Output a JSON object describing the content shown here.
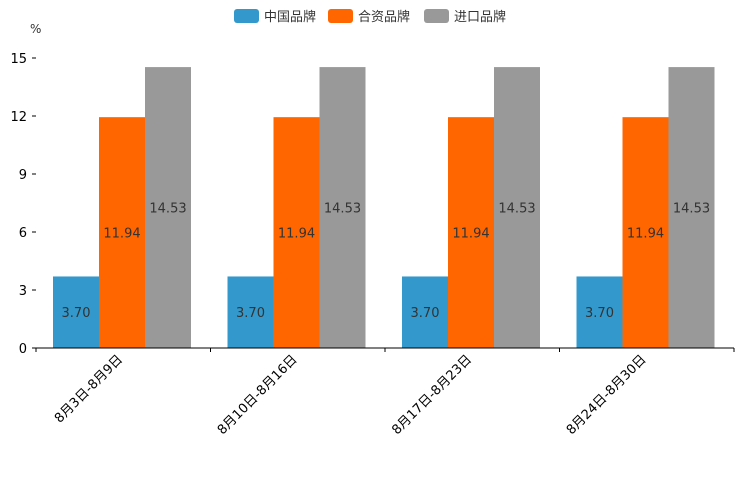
{
  "chart_data": {
    "type": "bar",
    "title": "",
    "xlabel": "",
    "ylabel": "%",
    "ylim": [
      0,
      15
    ],
    "yticks": [
      "0",
      "3",
      "6",
      "9",
      "12",
      "15"
    ],
    "legend_position": "top-center",
    "categories": [
      "8月3日-8月9日",
      "8月10日-8月16日",
      "8月17日-8月23日",
      "8月24日-8月30日"
    ],
    "series": [
      {
        "name": "中国品牌",
        "color": "#3399cc",
        "values": [
          3.7,
          3.7,
          3.7,
          3.7
        ],
        "labels": [
          "3.70",
          "3.70",
          "3.70",
          "3.70"
        ]
      },
      {
        "name": "合资品牌",
        "color": "#ff6600",
        "values": [
          11.94,
          11.94,
          11.94,
          11.94
        ],
        "labels": [
          "11.94",
          "11.94",
          "11.94",
          "11.94"
        ]
      },
      {
        "name": "进口品牌",
        "color": "#999999",
        "values": [
          14.53,
          14.53,
          14.53,
          14.53
        ],
        "labels": [
          "14.53",
          "14.53",
          "14.53",
          "14.53"
        ]
      }
    ]
  }
}
